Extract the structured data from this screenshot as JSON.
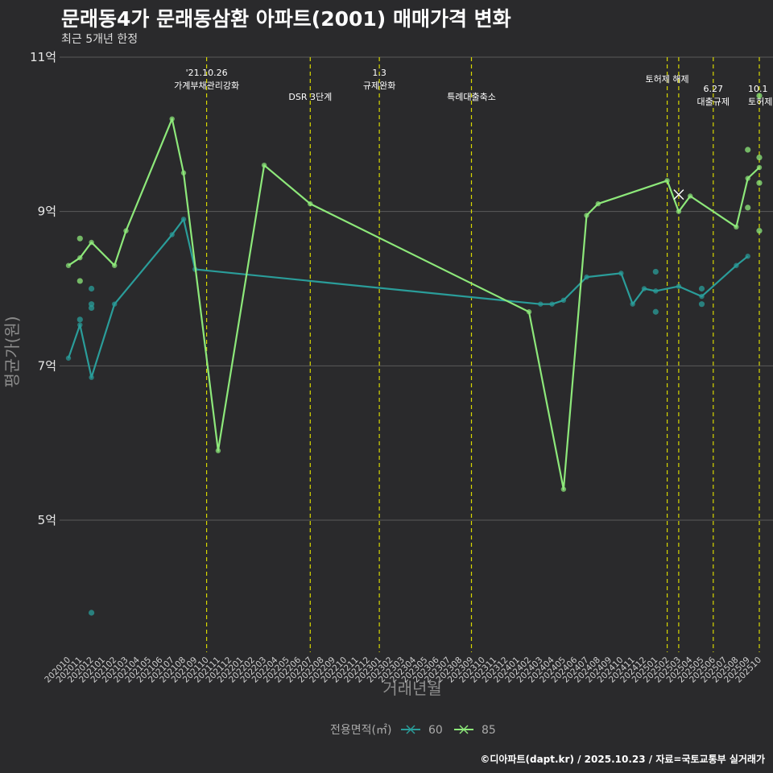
{
  "title": "문래동4가 문래동삼환 아파트(2001) 매매가격 변화",
  "subtitle": "최근 5개년 한정",
  "caption": "©디아파트(dapt.kr) / 2025.10.23 / 자료=국토교통부 실거래가",
  "colors": {
    "background": "#2a2a2c",
    "grid": "#5a5a5a",
    "series_60": "#2a9d9a",
    "series_85": "#8de87a",
    "policy_line": "#d8d800"
  },
  "chart_data": {
    "type": "line",
    "xlabel": "거래년월",
    "ylabel": "평균가(원)",
    "ylim": [
      3.5,
      11
    ],
    "yticks": [
      {
        "value": 5,
        "label": "5억"
      },
      {
        "value": 7,
        "label": "7억"
      },
      {
        "value": 9,
        "label": "9억"
      },
      {
        "value": 11,
        "label": "11억"
      }
    ],
    "x_categories": [
      "202010",
      "202011",
      "202012",
      "202101",
      "202102",
      "202103",
      "202104",
      "202105",
      "202106",
      "202107",
      "202108",
      "202109",
      "202110",
      "202111",
      "202112",
      "202201",
      "202202",
      "202203",
      "202204",
      "202205",
      "202206",
      "202207",
      "202208",
      "202209",
      "202210",
      "202211",
      "202212",
      "202301",
      "202302",
      "202303",
      "202304",
      "202305",
      "202306",
      "202307",
      "202308",
      "202309",
      "202310",
      "202311",
      "202312",
      "202401",
      "202402",
      "202403",
      "202404",
      "202405",
      "202406",
      "202407",
      "202408",
      "202409",
      "202410",
      "202411",
      "202412",
      "202501",
      "202502",
      "202503",
      "202504",
      "202505",
      "202506",
      "202507",
      "202508",
      "202509",
      "202510"
    ],
    "legend_title": "전용면적(㎡)",
    "series": [
      {
        "name": "60",
        "color": "#2a9d9a",
        "line": [
          {
            "x": "202010",
            "y": 7.1
          },
          {
            "x": "202011",
            "y": 7.53
          },
          {
            "x": "202012",
            "y": 6.85
          },
          {
            "x": "202102",
            "y": 7.8
          },
          {
            "x": "202107",
            "y": 8.7
          },
          {
            "x": "202108",
            "y": 8.9
          },
          {
            "x": "202109",
            "y": 8.25
          },
          {
            "x": "202403",
            "y": 7.8
          },
          {
            "x": "202404",
            "y": 7.8
          },
          {
            "x": "202405",
            "y": 7.85
          },
          {
            "x": "202407",
            "y": 8.15
          },
          {
            "x": "202410",
            "y": 8.2
          },
          {
            "x": "202411",
            "y": 7.8
          },
          {
            "x": "202412",
            "y": 8.0
          },
          {
            "x": "202501",
            "y": 7.97
          },
          {
            "x": "202503",
            "y": 8.03
          },
          {
            "x": "202505",
            "y": 7.9
          },
          {
            "x": "202508",
            "y": 8.3
          },
          {
            "x": "202509",
            "y": 8.42
          }
        ],
        "points": [
          {
            "x": "202011",
            "y": 7.6
          },
          {
            "x": "202012",
            "y": 8.0
          },
          {
            "x": "202012",
            "y": 7.8
          },
          {
            "x": "202012",
            "y": 7.75
          },
          {
            "x": "202012",
            "y": 3.8
          },
          {
            "x": "202501",
            "y": 8.22
          },
          {
            "x": "202501",
            "y": 7.7
          },
          {
            "x": "202505",
            "y": 8.0
          },
          {
            "x": "202505",
            "y": 7.8
          }
        ]
      },
      {
        "name": "85",
        "color": "#8de87a",
        "line": [
          {
            "x": "202010",
            "y": 8.3
          },
          {
            "x": "202011",
            "y": 8.4
          },
          {
            "x": "202012",
            "y": 8.6
          },
          {
            "x": "202102",
            "y": 8.3
          },
          {
            "x": "202103",
            "y": 8.75
          },
          {
            "x": "202107",
            "y": 10.2
          },
          {
            "x": "202108",
            "y": 9.5
          },
          {
            "x": "202111",
            "y": 5.9
          },
          {
            "x": "202203",
            "y": 9.6
          },
          {
            "x": "202207",
            "y": 9.1
          },
          {
            "x": "202402",
            "y": 7.7
          },
          {
            "x": "202405",
            "y": 5.4
          },
          {
            "x": "202407",
            "y": 8.95
          },
          {
            "x": "202408",
            "y": 9.1
          },
          {
            "x": "202502",
            "y": 9.4
          },
          {
            "x": "202503",
            "y": 9.0
          },
          {
            "x": "202504",
            "y": 9.2
          },
          {
            "x": "202508",
            "y": 8.8
          },
          {
            "x": "202509",
            "y": 9.43
          },
          {
            "x": "202510",
            "y": 9.57
          }
        ],
        "points": [
          {
            "x": "202011",
            "y": 8.65
          },
          {
            "x": "202011",
            "y": 8.1
          },
          {
            "x": "202509",
            "y": 9.8
          },
          {
            "x": "202509",
            "y": 9.05
          },
          {
            "x": "202510",
            "y": 10.5
          },
          {
            "x": "202510",
            "y": 9.7
          },
          {
            "x": "202510",
            "y": 9.37
          },
          {
            "x": "202510",
            "y": 8.75
          }
        ],
        "cross_marker": {
          "x": "202503",
          "y": 9.22
        }
      }
    ],
    "policy_events": [
      {
        "x": "202110",
        "lines": [
          "'21.10.26",
          "가계부채관리강화"
        ]
      },
      {
        "x": "202207",
        "lines": [
          "DSR 3단계"
        ]
      },
      {
        "x": "202301",
        "lines": [
          "1.3",
          "규제완화"
        ]
      },
      {
        "x": "202309",
        "lines": [
          "특례대출축소"
        ]
      },
      {
        "x": "202502",
        "lines": [
          "토허제 해제"
        ]
      },
      {
        "x": "202503",
        "lines": []
      },
      {
        "x": "202506",
        "lines": [
          "6.27",
          "대출규제"
        ]
      },
      {
        "x": "202510",
        "lines": [
          "10.1",
          "토허제"
        ]
      }
    ]
  }
}
